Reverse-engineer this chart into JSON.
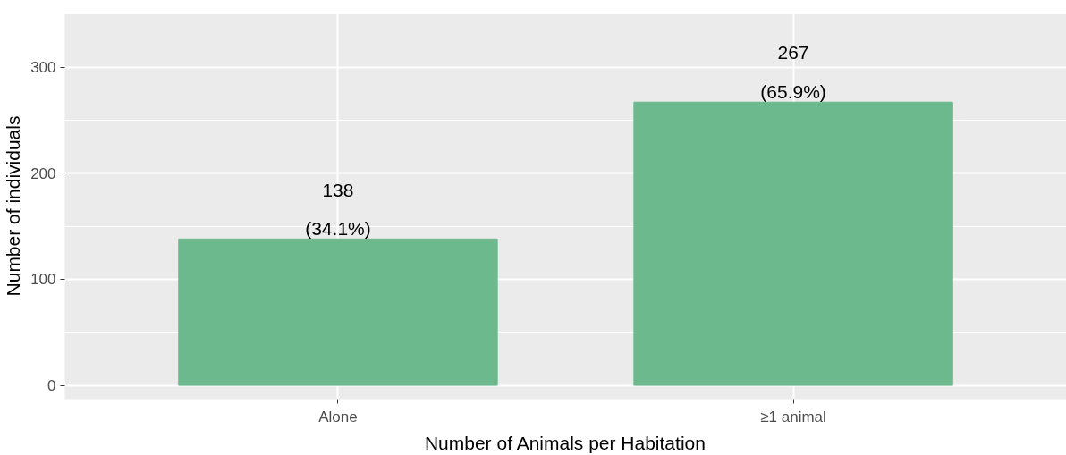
{
  "chart_data": {
    "type": "bar",
    "xlabel": "Number of Animals per Habitation",
    "ylabel": "Number of individuals",
    "categories": [
      "Alone",
      "≥1 animal"
    ],
    "values": [
      138,
      267
    ],
    "color": "#6db98e",
    "value_labels": [
      "138\n(34.1%)",
      "267\n(65.9%)"
    ],
    "ylim": [
      -13,
      351
    ],
    "yticks": [
      0,
      100,
      200,
      300
    ],
    "grid": true
  }
}
